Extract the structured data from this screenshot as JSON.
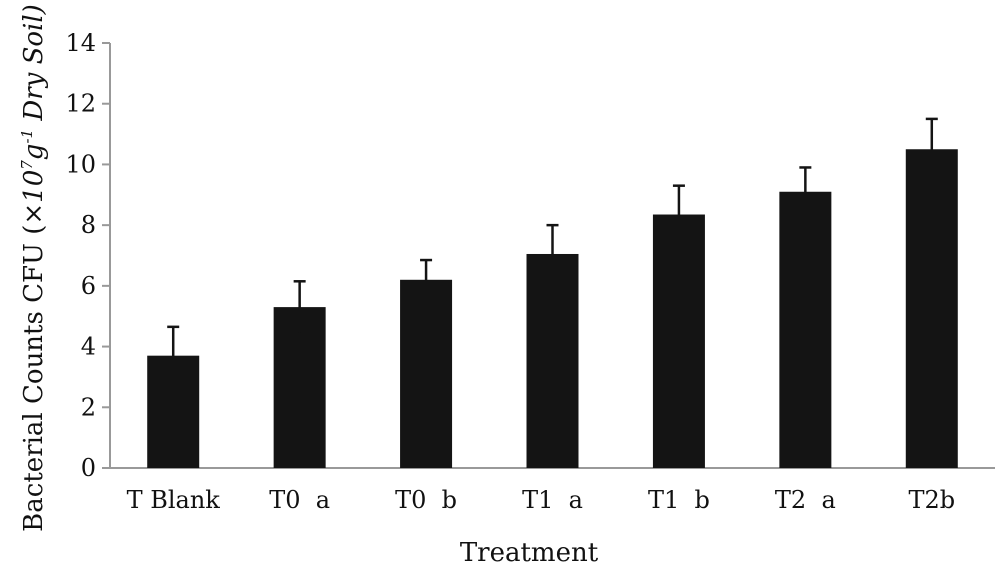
{
  "chart_data": {
    "type": "bar",
    "categories": [
      "T Blank",
      "T0  a",
      "T0  b",
      "T1  a",
      "T1  b",
      "T2  a",
      "T2b"
    ],
    "values": [
      3.7,
      5.3,
      6.2,
      7.05,
      8.35,
      9.1,
      10.5
    ],
    "errors": [
      0.95,
      0.85,
      0.65,
      0.95,
      0.95,
      0.8,
      1.0
    ],
    "xlabel": "Treatment",
    "ylabel": {
      "prefix": "Bacterial Counts CFU (",
      "multiplier": "×10",
      "exp1": "7",
      "unit": "g",
      "exp2": "-1",
      "suffix": " Dry Soil)"
    },
    "ylim": [
      0,
      14
    ],
    "yticks": [
      0,
      2,
      4,
      6,
      8,
      10,
      12,
      14
    ],
    "grid": false,
    "bar_color": "#141414"
  }
}
